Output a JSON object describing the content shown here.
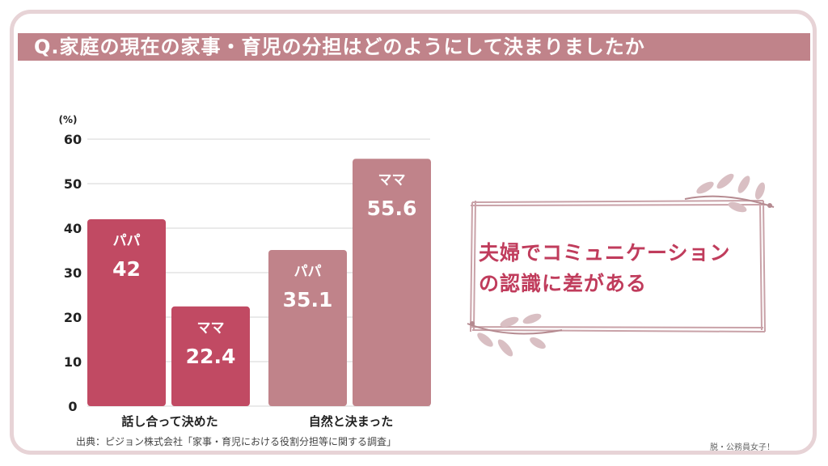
{
  "title": "Q.家庭の現在の家事・育児の分担はどのようにして決まりましたか",
  "note": {
    "line1": "夫婦でコミュニケーション",
    "line2": "の認識に差がある"
  },
  "source": "出典：ピジョン株式会社「家事・育児における役割分担等に関する調査」",
  "credit": "脱・公務員女子！",
  "colors": {
    "title_bar": "#c0838a",
    "group1": "#c14a63",
    "group2": "#c0838a",
    "note_text": "#c03c5c",
    "border": "#e7d3d6"
  },
  "chart_data": {
    "type": "bar",
    "unit_label": "(%)",
    "ylim": [
      0,
      60
    ],
    "yticks": [
      0,
      10,
      20,
      30,
      40,
      50,
      60
    ],
    "grid": true,
    "categories": [
      "話し合って決めた",
      "自然と決まった"
    ],
    "bars": [
      {
        "category": "話し合って決めた",
        "label": "パパ",
        "value": 42,
        "value_text": "42",
        "color": "#c14a63"
      },
      {
        "category": "話し合って決めた",
        "label": "ママ",
        "value": 22.4,
        "value_text": "22.4",
        "color": "#c14a63"
      },
      {
        "category": "自然と決まった",
        "label": "パパ",
        "value": 35.1,
        "value_text": "35.1",
        "color": "#c0838a"
      },
      {
        "category": "自然と決まった",
        "label": "ママ",
        "value": 55.6,
        "value_text": "55.6",
        "color": "#c0838a"
      }
    ]
  }
}
